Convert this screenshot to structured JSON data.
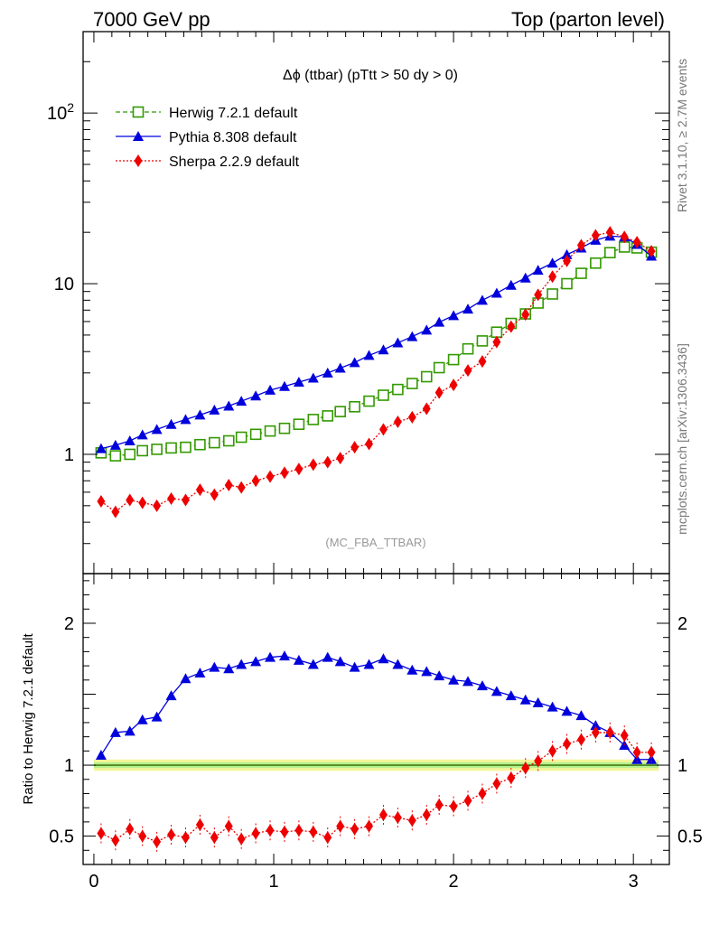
{
  "header": {
    "left": "7000 GeV pp",
    "right": "Top (parton level)"
  },
  "side_labels": {
    "rivet": "Rivet 3.1.10, ≥ 2.7M events",
    "mcplots": "mcplots.cern.ch [arXiv:1306.3436]"
  },
  "chart_data": [
    {
      "type": "line",
      "title": "Δϕ (ttbar) (pTtt > 50 dy > 0)",
      "watermark": "(MC_FBA_TTBAR)",
      "yscale": "log",
      "ylim": [
        0.2,
        300
      ],
      "xlim": [
        -0.06,
        3.2
      ],
      "ytick_labels": [
        "1",
        "10",
        "10^2"
      ],
      "legend_position": "top-left",
      "series": [
        {
          "name": "Herwig 7.2.1 default",
          "color": "#339900",
          "marker": "open-square",
          "line": "dashed",
          "x": [
            0.04,
            0.12,
            0.2,
            0.27,
            0.35,
            0.43,
            0.51,
            0.59,
            0.67,
            0.75,
            0.82,
            0.9,
            0.98,
            1.06,
            1.14,
            1.22,
            1.3,
            1.37,
            1.45,
            1.53,
            1.61,
            1.69,
            1.77,
            1.85,
            1.92,
            2.0,
            2.08,
            2.16,
            2.24,
            2.32,
            2.4,
            2.47,
            2.55,
            2.63,
            2.71,
            2.79,
            2.87,
            2.95,
            3.02,
            3.1
          ],
          "values": [
            1.02,
            0.98,
            1.0,
            1.05,
            1.07,
            1.09,
            1.1,
            1.14,
            1.17,
            1.2,
            1.26,
            1.31,
            1.37,
            1.42,
            1.5,
            1.6,
            1.68,
            1.78,
            1.9,
            2.05,
            2.22,
            2.4,
            2.6,
            2.85,
            3.22,
            3.59,
            4.15,
            4.62,
            5.2,
            5.85,
            6.65,
            7.7,
            8.7,
            10.0,
            11.5,
            13.2,
            15.2,
            16.4,
            16.2,
            15.3
          ]
        },
        {
          "name": "Pythia 8.308 default",
          "color": "#0000dd",
          "marker": "filled-triangle",
          "line": "solid",
          "x": [
            0.04,
            0.12,
            0.2,
            0.27,
            0.35,
            0.43,
            0.51,
            0.59,
            0.67,
            0.75,
            0.82,
            0.9,
            0.98,
            1.06,
            1.14,
            1.22,
            1.3,
            1.37,
            1.45,
            1.53,
            1.61,
            1.69,
            1.77,
            1.85,
            1.92,
            2.0,
            2.08,
            2.16,
            2.24,
            2.32,
            2.4,
            2.47,
            2.55,
            2.63,
            2.71,
            2.79,
            2.87,
            2.95,
            3.02,
            3.1
          ],
          "values": [
            1.08,
            1.13,
            1.2,
            1.3,
            1.4,
            1.5,
            1.6,
            1.7,
            1.82,
            1.92,
            2.05,
            2.2,
            2.38,
            2.5,
            2.65,
            2.8,
            3.0,
            3.2,
            3.45,
            3.8,
            4.1,
            4.5,
            4.9,
            5.35,
            5.95,
            6.5,
            7.1,
            8.0,
            8.8,
            9.8,
            10.8,
            12.0,
            13.2,
            14.8,
            16.2,
            18.0,
            19.0,
            18.8,
            17.0,
            14.5
          ]
        },
        {
          "name": "Sherpa 2.2.9 default",
          "color": "#ee0000",
          "marker": "filled-diamond",
          "line": "dotted",
          "x": [
            0.04,
            0.12,
            0.2,
            0.27,
            0.35,
            0.43,
            0.51,
            0.59,
            0.67,
            0.75,
            0.82,
            0.9,
            0.98,
            1.06,
            1.14,
            1.22,
            1.3,
            1.37,
            1.45,
            1.53,
            1.61,
            1.69,
            1.77,
            1.85,
            1.92,
            2.0,
            2.08,
            2.16,
            2.24,
            2.32,
            2.4,
            2.47,
            2.55,
            2.63,
            2.71,
            2.79,
            2.87,
            2.95,
            3.02,
            3.1
          ],
          "values": [
            0.53,
            0.46,
            0.54,
            0.52,
            0.5,
            0.55,
            0.54,
            0.62,
            0.58,
            0.66,
            0.64,
            0.7,
            0.74,
            0.78,
            0.82,
            0.87,
            0.9,
            0.95,
            1.1,
            1.15,
            1.4,
            1.55,
            1.65,
            1.85,
            2.3,
            2.55,
            3.1,
            3.5,
            4.55,
            5.6,
            6.6,
            8.6,
            11.0,
            13.6,
            16.8,
            19.2,
            20.0,
            18.8,
            17.5,
            15.5
          ]
        }
      ]
    },
    {
      "type": "line",
      "ylabel": "Ratio to Herwig 7.2.1 default",
      "ylim": [
        0.3,
        2.35
      ],
      "xlim": [
        -0.06,
        3.2
      ],
      "xtick_labels": [
        "0",
        "1",
        "2",
        "3"
      ],
      "ytick_labels": [
        "0.5",
        "1",
        "2"
      ],
      "reference_band_color": "#eeee55",
      "series": [
        {
          "name": "Pythia 8.308 default",
          "color": "#0000dd",
          "marker": "filled-triangle",
          "x": [
            0.04,
            0.12,
            0.2,
            0.27,
            0.35,
            0.43,
            0.51,
            0.59,
            0.67,
            0.75,
            0.82,
            0.9,
            0.98,
            1.06,
            1.14,
            1.22,
            1.3,
            1.37,
            1.45,
            1.53,
            1.61,
            1.69,
            1.77,
            1.85,
            1.92,
            2.0,
            2.08,
            2.16,
            2.24,
            2.32,
            2.4,
            2.47,
            2.55,
            2.63,
            2.71,
            2.79,
            2.87,
            2.95,
            3.02,
            3.1
          ],
          "values": [
            1.07,
            1.23,
            1.24,
            1.32,
            1.34,
            1.49,
            1.61,
            1.65,
            1.69,
            1.68,
            1.71,
            1.73,
            1.76,
            1.77,
            1.74,
            1.71,
            1.76,
            1.73,
            1.69,
            1.71,
            1.75,
            1.71,
            1.67,
            1.66,
            1.63,
            1.6,
            1.59,
            1.56,
            1.52,
            1.49,
            1.46,
            1.44,
            1.41,
            1.38,
            1.35,
            1.28,
            1.23,
            1.14,
            1.04,
            1.04
          ]
        },
        {
          "name": "Sherpa 2.2.9 default",
          "color": "#ee0000",
          "marker": "filled-diamond",
          "x": [
            0.04,
            0.12,
            0.2,
            0.27,
            0.35,
            0.43,
            0.51,
            0.59,
            0.67,
            0.75,
            0.82,
            0.9,
            0.98,
            1.06,
            1.14,
            1.22,
            1.3,
            1.37,
            1.45,
            1.53,
            1.61,
            1.69,
            1.77,
            1.85,
            1.92,
            2.0,
            2.08,
            2.16,
            2.24,
            2.32,
            2.4,
            2.47,
            2.55,
            2.63,
            2.71,
            2.79,
            2.87,
            2.95,
            3.02,
            3.1
          ],
          "values": [
            0.52,
            0.47,
            0.55,
            0.5,
            0.46,
            0.51,
            0.49,
            0.58,
            0.49,
            0.57,
            0.48,
            0.52,
            0.54,
            0.53,
            0.54,
            0.53,
            0.49,
            0.57,
            0.55,
            0.57,
            0.65,
            0.63,
            0.61,
            0.65,
            0.72,
            0.71,
            0.75,
            0.8,
            0.87,
            0.91,
            0.98,
            1.03,
            1.1,
            1.15,
            1.18,
            1.23,
            1.23,
            1.21,
            1.09,
            1.09
          ]
        }
      ]
    }
  ]
}
